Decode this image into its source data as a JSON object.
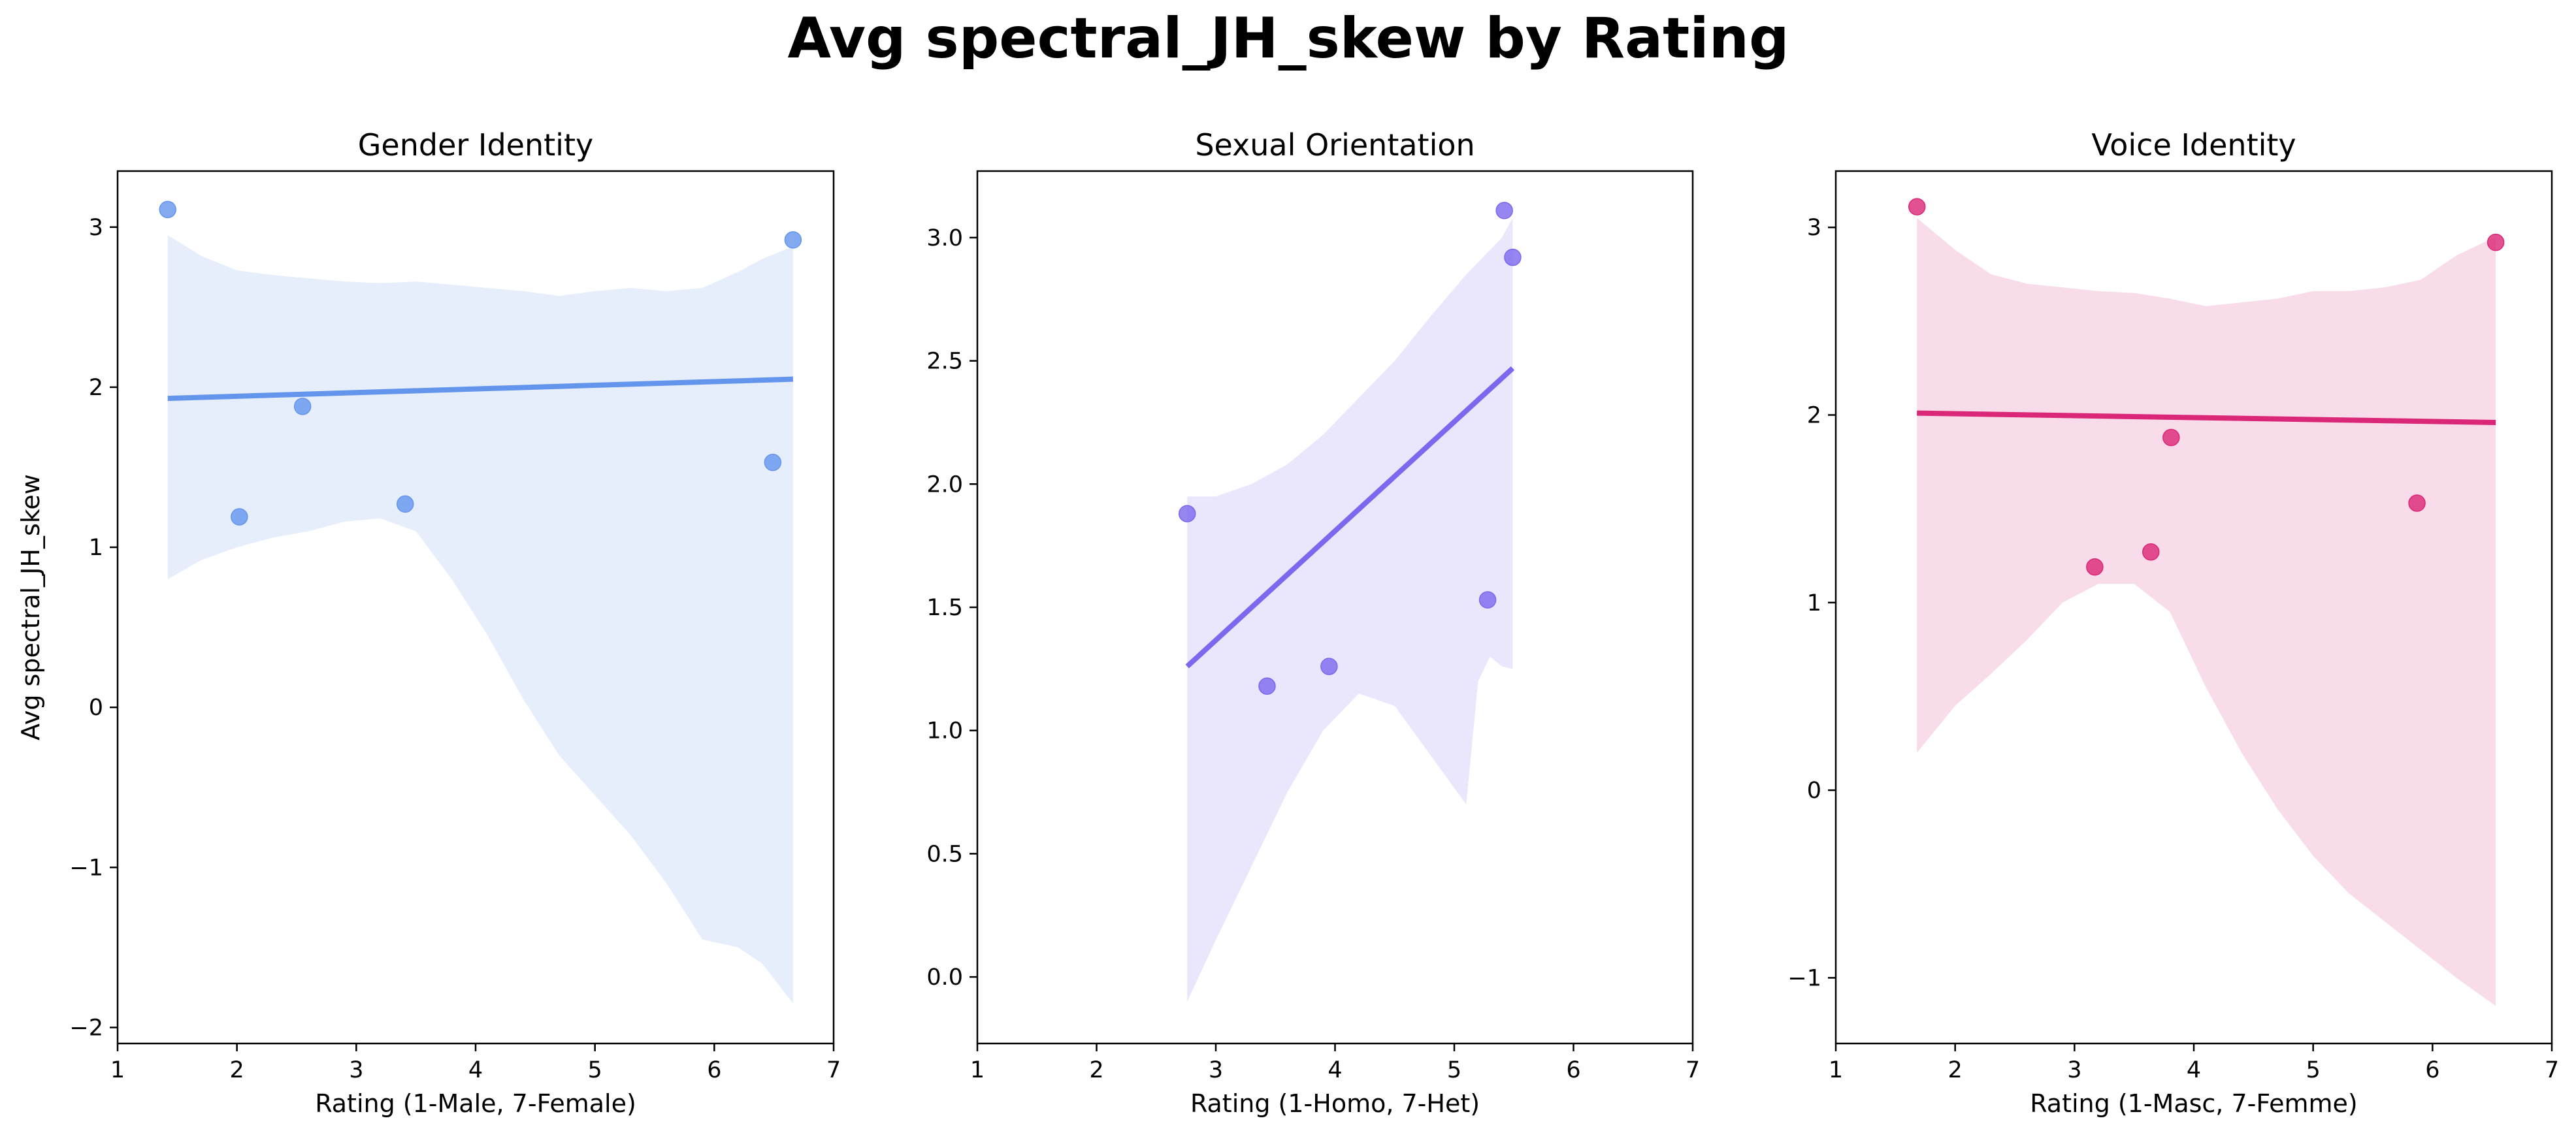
{
  "figure": {
    "title": "Avg spectral_JH_skew by Rating"
  },
  "chart_data": [
    {
      "type": "scatter",
      "title": "Gender Identity",
      "xlabel": "Rating (1-Male, 7-Female)",
      "ylabel": "Avg spectral_JH_skew",
      "xlim": [
        1,
        7
      ],
      "ylim": [
        -2.1,
        3.35
      ],
      "xticks": [
        1,
        2,
        3,
        4,
        5,
        6,
        7
      ],
      "yticks": [
        -2,
        -1,
        0,
        1,
        2,
        3
      ],
      "ytick_labels": [
        "−2",
        "−1",
        "0",
        "1",
        "2",
        "3"
      ],
      "color": "#6495ED",
      "points": [
        {
          "x": 1.42,
          "y": 3.11
        },
        {
          "x": 2.02,
          "y": 1.19
        },
        {
          "x": 2.55,
          "y": 1.88
        },
        {
          "x": 3.41,
          "y": 1.27
        },
        {
          "x": 6.49,
          "y": 1.53
        },
        {
          "x": 6.66,
          "y": 2.92
        }
      ],
      "regression": {
        "x": [
          1.42,
          6.66
        ],
        "y": [
          1.93,
          2.05
        ]
      },
      "ci_band": {
        "x": [
          1.42,
          1.7,
          2.0,
          2.3,
          2.6,
          2.9,
          3.2,
          3.5,
          3.8,
          4.1,
          4.4,
          4.7,
          5.0,
          5.3,
          5.6,
          5.9,
          6.2,
          6.4,
          6.66
        ],
        "upper": [
          2.95,
          2.82,
          2.73,
          2.7,
          2.68,
          2.66,
          2.65,
          2.66,
          2.64,
          2.62,
          2.6,
          2.57,
          2.6,
          2.62,
          2.6,
          2.62,
          2.72,
          2.8,
          2.88
        ],
        "lower": [
          0.8,
          0.92,
          1.0,
          1.06,
          1.1,
          1.16,
          1.18,
          1.1,
          0.8,
          0.45,
          0.05,
          -0.3,
          -0.55,
          -0.8,
          -1.1,
          -1.45,
          -1.5,
          -1.6,
          -1.85
        ]
      }
    },
    {
      "type": "scatter",
      "title": "Sexual Orientation",
      "xlabel": "Rating (1-Homo, 7-Het)",
      "ylabel": "",
      "xlim": [
        1,
        7
      ],
      "ylim": [
        -0.27,
        3.27
      ],
      "xticks": [
        1,
        2,
        3,
        4,
        5,
        6,
        7
      ],
      "yticks": [
        0.0,
        0.5,
        1.0,
        1.5,
        2.0,
        2.5,
        3.0
      ],
      "ytick_labels": [
        "0.0",
        "0.5",
        "1.0",
        "1.5",
        "2.0",
        "2.5",
        "3.0"
      ],
      "color": "#7B68EE",
      "points": [
        {
          "x": 2.76,
          "y": 1.88
        },
        {
          "x": 3.43,
          "y": 1.18
        },
        {
          "x": 3.95,
          "y": 1.26
        },
        {
          "x": 5.28,
          "y": 1.53
        },
        {
          "x": 5.42,
          "y": 3.11
        },
        {
          "x": 5.49,
          "y": 2.92
        }
      ],
      "regression": {
        "x": [
          2.76,
          5.49
        ],
        "y": [
          1.26,
          2.47
        ]
      },
      "ci_band": {
        "x": [
          2.76,
          3.0,
          3.3,
          3.6,
          3.9,
          4.2,
          4.5,
          4.8,
          5.1,
          5.2,
          5.3,
          5.4,
          5.49
        ],
        "upper": [
          1.95,
          1.95,
          2.0,
          2.08,
          2.2,
          2.35,
          2.5,
          2.68,
          2.85,
          2.9,
          2.95,
          3.0,
          3.08
        ],
        "lower": [
          -0.1,
          0.15,
          0.45,
          0.75,
          1.0,
          1.15,
          1.1,
          0.9,
          0.7,
          1.2,
          1.3,
          1.26,
          1.25
        ]
      }
    },
    {
      "type": "scatter",
      "title": "Voice Identity",
      "xlabel": "Rating (1-Masc, 7-Femme)",
      "ylabel": "",
      "xlim": [
        1,
        7
      ],
      "ylim": [
        -1.35,
        3.3
      ],
      "xticks": [
        1,
        2,
        3,
        4,
        5,
        6,
        7
      ],
      "yticks": [
        -1,
        0,
        1,
        2,
        3
      ],
      "ytick_labels": [
        "−1",
        "0",
        "1",
        "2",
        "3"
      ],
      "color": "#DB2777",
      "points": [
        {
          "x": 1.68,
          "y": 3.11
        },
        {
          "x": 3.17,
          "y": 1.19
        },
        {
          "x": 3.64,
          "y": 1.27
        },
        {
          "x": 3.81,
          "y": 1.88
        },
        {
          "x": 5.87,
          "y": 1.53
        },
        {
          "x": 6.53,
          "y": 2.92
        }
      ],
      "regression": {
        "x": [
          1.68,
          6.53
        ],
        "y": [
          2.01,
          1.96
        ]
      },
      "ci_band": {
        "x": [
          1.68,
          2.0,
          2.3,
          2.6,
          2.9,
          3.2,
          3.5,
          3.8,
          4.1,
          4.4,
          4.7,
          5.0,
          5.3,
          5.6,
          5.9,
          6.2,
          6.53
        ],
        "upper": [
          3.05,
          2.88,
          2.75,
          2.7,
          2.68,
          2.66,
          2.65,
          2.62,
          2.58,
          2.6,
          2.62,
          2.66,
          2.66,
          2.68,
          2.72,
          2.85,
          2.95
        ],
        "lower": [
          0.2,
          0.45,
          0.62,
          0.8,
          1.0,
          1.1,
          1.1,
          0.95,
          0.55,
          0.2,
          -0.1,
          -0.35,
          -0.55,
          -0.7,
          -0.85,
          -1.0,
          -1.15
        ]
      }
    }
  ]
}
